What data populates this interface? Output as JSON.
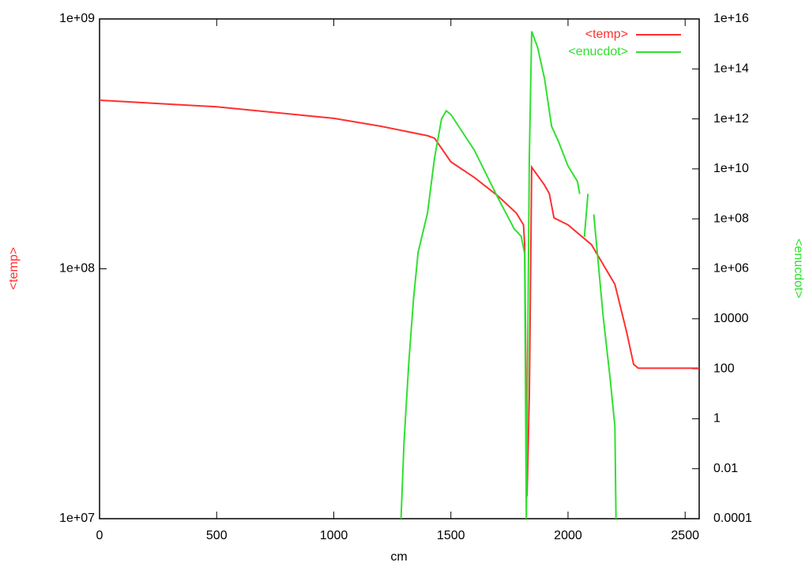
{
  "chart_data": {
    "type": "line",
    "xlabel": "cm",
    "ylabel": "<temp>",
    "y2label": "<enucdot>",
    "xlim": [
      0,
      2560
    ],
    "xticks": [
      0,
      500,
      1000,
      1500,
      2000,
      2500
    ],
    "ylim": [
      10000000,
      1000000000
    ],
    "ylog": true,
    "yticks": [
      {
        "value": 10000000,
        "label": "1e+07"
      },
      {
        "value": 100000000,
        "label": "1e+08"
      },
      {
        "value": 1000000000,
        "label": "1e+09"
      }
    ],
    "y2lim": [
      0.0001,
      10000000000000000
    ],
    "y2log": true,
    "y2ticks": [
      0.0001,
      0.01,
      1,
      100,
      10000,
      {
        "value": 1000000,
        "label": "1e+06"
      },
      {
        "value": 100000000,
        "label": "1e+08"
      },
      {
        "value": 10000000000,
        "label": "1e+10"
      },
      {
        "value": 1000000000000,
        "label": "1e+12"
      },
      {
        "value": 100000000000000,
        "label": "1e+14"
      },
      {
        "value": 10000000000000000,
        "label": "1e+16"
      }
    ],
    "legend": "upper right",
    "series": [
      {
        "name": "<temp>",
        "color": "#ff3030",
        "x": [
          0,
          500,
          1000,
          1200,
          1400,
          1430,
          1500,
          1600,
          1700,
          1780,
          1810,
          1815,
          1825,
          1835,
          1845,
          1900,
          1920,
          1940,
          2000,
          2100,
          2200,
          2250,
          2280,
          2300,
          2560
        ],
        "values": [
          473000000,
          445000000,
          400000000,
          372000000,
          341000000,
          333000000,
          268000000,
          232000000,
          196000000,
          167000000,
          150000000,
          125000000,
          12300000,
          31000000,
          255000000,
          216000000,
          200000000,
          160000000,
          150000000,
          125000000,
          86700000,
          56000000,
          41500000,
          40000000,
          40000000
        ]
      },
      {
        "name": "<enucdot>",
        "color": "#30e030",
        "axis": "y2",
        "x": [
          1287,
          1300,
          1320,
          1340,
          1360,
          1400,
          1430,
          1460,
          1480,
          1500,
          1600,
          1700,
          1770,
          1800,
          1815,
          1822,
          1835,
          1845,
          1870,
          1900,
          1930,
          1960,
          2000,
          2040,
          2050,
          2060,
          2070,
          2085,
          2095,
          2110,
          2150,
          2180,
          2200,
          2205
        ],
        "values": [
          0.0001,
          0.117,
          166,
          56000,
          4500000,
          170000000,
          27000000000,
          1000000000000,
          2100000000000,
          1500000000000,
          56000000000,
          720000000,
          40000000,
          20000000,
          4000000,
          0.0001,
          27000000000,
          3200000000000000,
          750000000000000,
          40000000000000,
          500000000000,
          120000000000,
          13000000000,
          3200000000,
          1000000000,
          null,
          19000000,
          1000000000,
          null,
          150000000,
          13000,
          40,
          0.5,
          0.0001
        ]
      }
    ]
  }
}
